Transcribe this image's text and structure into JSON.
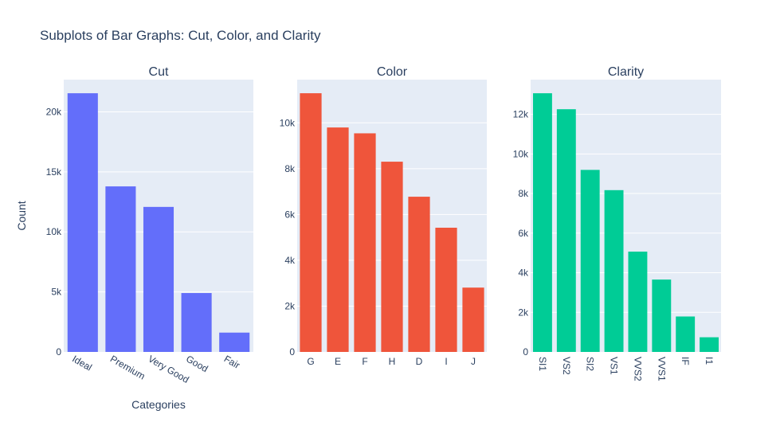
{
  "figure": {
    "title": "Subplots of Bar Graphs: Cut, Color, and Clarity",
    "ylabel": "Count",
    "xlabel": "Categories"
  },
  "chart_data": [
    {
      "type": "bar",
      "title": "Cut",
      "categories": [
        "Ideal",
        "Premium",
        "Very Good",
        "Good",
        "Fair"
      ],
      "values": [
        21551,
        13791,
        12082,
        4906,
        1610
      ],
      "ylim": [
        0,
        22685
      ],
      "yticks": [
        0,
        5000,
        10000,
        15000,
        20000
      ],
      "ytick_labels": [
        "0",
        "5k",
        "10k",
        "15k",
        "20k"
      ],
      "tick_rotation": 30,
      "color": "#636efa",
      "grid": true
    },
    {
      "type": "bar",
      "title": "Color",
      "categories": [
        "G",
        "E",
        "F",
        "H",
        "D",
        "I",
        "J"
      ],
      "values": [
        11292,
        9797,
        9542,
        8304,
        6775,
        5422,
        2808
      ],
      "ylim": [
        0,
        11886
      ],
      "yticks": [
        0,
        2000,
        4000,
        6000,
        8000,
        10000
      ],
      "ytick_labels": [
        "0",
        "2k",
        "4k",
        "6k",
        "8k",
        "10k"
      ],
      "tick_rotation": 0,
      "color": "#ef553b",
      "grid": true
    },
    {
      "type": "bar",
      "title": "Clarity",
      "categories": [
        "SI1",
        "VS2",
        "SI2",
        "VS1",
        "VVS2",
        "VVS1",
        "IF",
        "I1"
      ],
      "values": [
        13065,
        12258,
        9194,
        8171,
        5066,
        3655,
        1790,
        741
      ],
      "ylim": [
        0,
        13753
      ],
      "yticks": [
        0,
        2000,
        4000,
        6000,
        8000,
        10000,
        12000
      ],
      "ytick_labels": [
        "0",
        "2k",
        "4k",
        "6k",
        "8k",
        "10k",
        "12k"
      ],
      "tick_rotation": 90,
      "color": "#00cc96",
      "grid": true
    }
  ]
}
